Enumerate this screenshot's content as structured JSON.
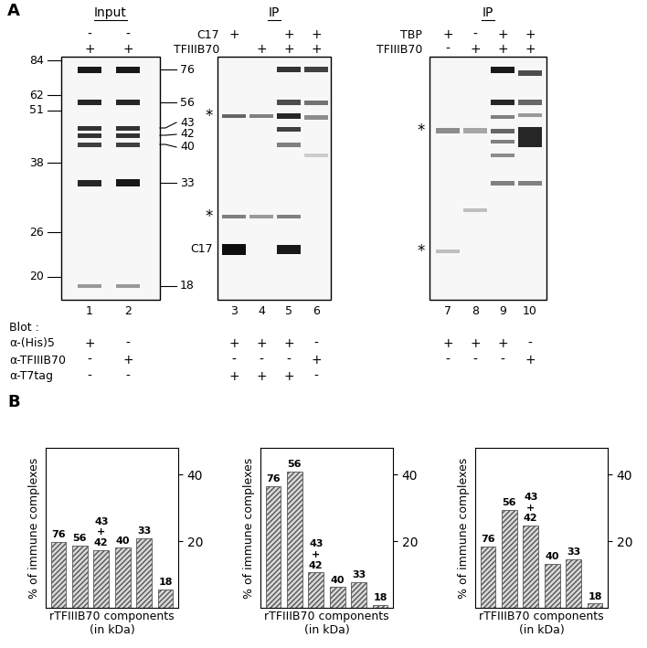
{
  "panel_labels": {
    "a": "A",
    "b": "B"
  },
  "panel_A": {
    "gels": [
      {
        "title": "Input",
        "lanes": [
          1,
          2
        ]
      },
      {
        "title": "IP",
        "lanes": [
          3,
          4,
          5,
          6
        ]
      },
      {
        "title": "IP",
        "lanes": [
          7,
          8,
          9,
          10
        ]
      }
    ],
    "treatment_rows": [
      [
        {
          "label": "C17",
          "values": [
            "-",
            "-",
            "+",
            null,
            "+",
            "+",
            null,
            null,
            null,
            null
          ]
        },
        {
          "label": "TBP",
          "values": [
            null,
            null,
            null,
            null,
            null,
            null,
            "+",
            "-",
            "+",
            "+"
          ]
        }
      ],
      [
        {
          "label": "TFIIIB70",
          "values": [
            "+",
            "+",
            null,
            "+",
            "+",
            "+",
            null,
            null,
            null,
            null
          ]
        },
        {
          "label": "TFIIIB70",
          "values": [
            null,
            null,
            null,
            null,
            null,
            null,
            "-",
            "+",
            "+",
            "+"
          ]
        }
      ]
    ],
    "blot_title": "Blot :",
    "blots": [
      {
        "label": "α-(His)5",
        "values": [
          "+",
          "-",
          "+",
          "+",
          "+",
          "-",
          "+",
          "+",
          "+",
          "-"
        ]
      },
      {
        "label": "α-TFIIIB70",
        "values": [
          "-",
          "+",
          "-",
          "-",
          "-",
          "+",
          "-",
          "-",
          "-",
          "+"
        ]
      },
      {
        "label": "α-T7tag",
        "values": [
          "-",
          "-",
          "+",
          "+",
          "+",
          "-",
          null,
          null,
          null,
          null
        ]
      }
    ],
    "size_markers": [
      84,
      62,
      51,
      38,
      26,
      20
    ],
    "band_labels": [
      76,
      56,
      43,
      42,
      40,
      33,
      18
    ],
    "c17_band_label": "C17",
    "nonspecific_mark": "*"
  },
  "chart_data": [
    {
      "type": "bar",
      "categories": [
        "76",
        "56",
        "43\n+\n42",
        "40",
        "33",
        "18"
      ],
      "values": [
        19.7,
        18.7,
        17.4,
        18.0,
        20.8,
        5.5
      ],
      "xlabel": "rTFIIIB70 components\n(in kDa)",
      "ylabel": "% of immune complexes",
      "ylim": [
        0,
        48
      ],
      "yticks": [
        20,
        40
      ],
      "color": "#d9d9d9",
      "tick_labels": "y"
    },
    {
      "type": "bar",
      "categories": [
        "76",
        "56",
        "43\n+\n42",
        "40",
        "33",
        "18"
      ],
      "values": [
        36.4,
        40.8,
        10.6,
        6.2,
        7.8,
        0.8
      ],
      "xlabel": "rTFIIIB70 components\n(in kDa)",
      "ylabel": "% of immune complexes",
      "ylim": [
        0,
        48
      ],
      "yticks": [
        20,
        40
      ],
      "color": "#d9d9d9",
      "tick_labels": "y"
    },
    {
      "type": "bar",
      "categories": [
        "76",
        "56",
        "43\n+\n42",
        "40",
        "33",
        "18"
      ],
      "values": [
        18.4,
        29.4,
        24.7,
        13.2,
        14.5,
        1.3
      ],
      "xlabel": "rTFIIIB70 components\n(in kDa)",
      "ylabel": "% of immune complexes",
      "ylim": [
        0,
        48
      ],
      "yticks": [
        20,
        40
      ],
      "color": "#d9d9d9",
      "tick_labels": "y"
    }
  ]
}
